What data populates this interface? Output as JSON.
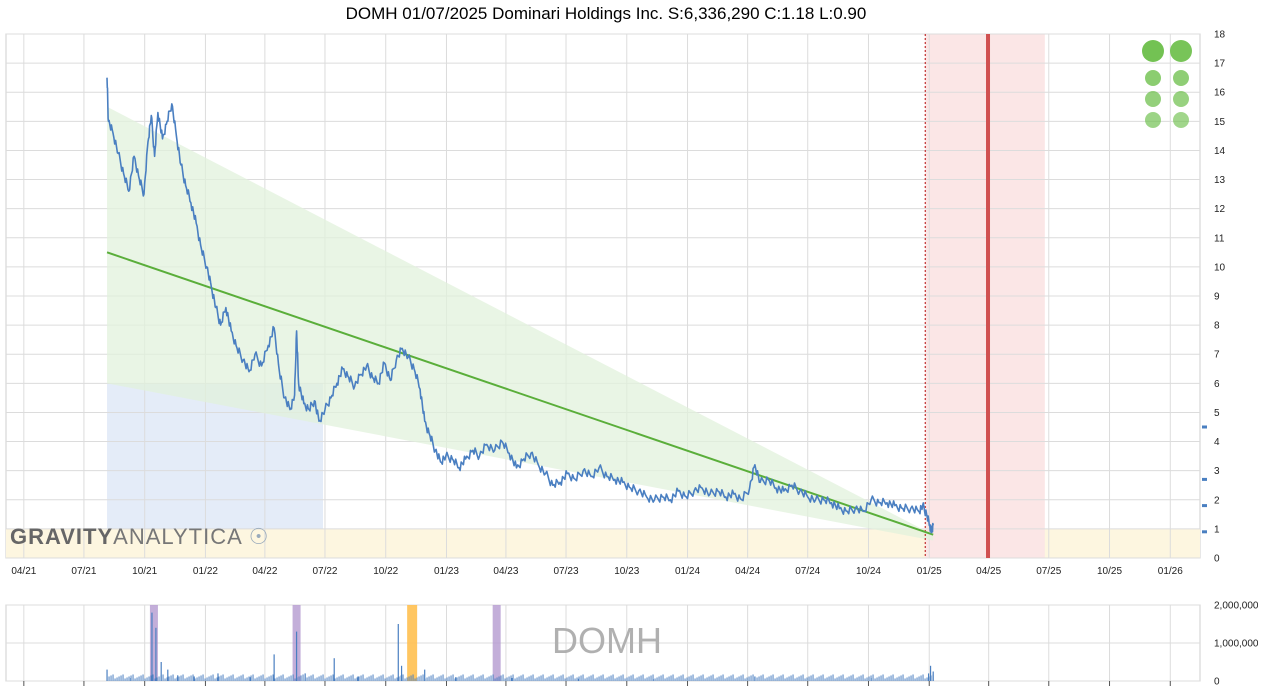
{
  "title": "DOMH 01/07/2025 Dominari Holdings Inc. S:6,336,290 C:1.18 L:0.90",
  "watermark": {
    "bold": "GRAVITY",
    "light": "ANALYTICA"
  },
  "volume_symbol": "DOMH",
  "colors": {
    "price": "#4a7fc1",
    "trend": "#5aae3a",
    "channel": "#e2f2dc",
    "blue_zone": "#e4ecf8",
    "yellow_zone": "#fdf6e0",
    "red_zone": "#fbe6e6",
    "red_line": "#d05050",
    "volume": "#4a7fc1",
    "purple_band": "#b49ad0",
    "orange_band": "#ffc050",
    "dots": "#6cbf4a"
  },
  "chart_data": [
    {
      "type": "line",
      "title": "DOMH 01/07/2025 Dominari Holdings Inc. S:6,336,290 C:1.18 L:0.90",
      "x_tick_labels": [
        "04/21",
        "07/21",
        "10/21",
        "01/22",
        "04/22",
        "07/22",
        "10/22",
        "01/23",
        "04/23",
        "07/23",
        "10/23",
        "01/24",
        "04/24",
        "07/24",
        "10/24",
        "01/25",
        "04/25",
        "07/25",
        "10/25",
        "01/26"
      ],
      "y_ticks": [
        0,
        1,
        2,
        3,
        4,
        5,
        6,
        7,
        8,
        9,
        10,
        11,
        12,
        13,
        14,
        15,
        16,
        17,
        18
      ],
      "ylim": [
        0,
        18
      ],
      "xlim": [
        "2021-03-05",
        "2026-02-15"
      ],
      "grid": true,
      "series": [
        {
          "name": "",
          "points": [
            [
              "2021-08-05",
              16.5
            ],
            [
              "2021-08-07",
              15.0
            ],
            [
              "2021-08-14",
              14.6
            ],
            [
              "2021-08-22",
              13.9
            ],
            [
              "2021-08-30",
              13.2
            ],
            [
              "2021-09-07",
              12.6
            ],
            [
              "2021-09-15",
              13.8
            ],
            [
              "2021-09-23",
              13.0
            ],
            [
              "2021-09-30",
              12.5
            ],
            [
              "2021-10-06",
              14.3
            ],
            [
              "2021-10-11",
              15.2
            ],
            [
              "2021-10-16",
              13.8
            ],
            [
              "2021-10-21",
              15.3
            ],
            [
              "2021-10-28",
              14.4
            ],
            [
              "2021-11-04",
              15.0
            ],
            [
              "2021-11-11",
              15.6
            ],
            [
              "2021-11-18",
              14.5
            ],
            [
              "2021-11-25",
              13.5
            ],
            [
              "2021-12-02",
              12.8
            ],
            [
              "2021-12-10",
              12.2
            ],
            [
              "2021-12-18",
              11.5
            ],
            [
              "2021-12-26",
              10.6
            ],
            [
              "2022-01-03",
              10.0
            ],
            [
              "2022-01-10",
              9.3
            ],
            [
              "2022-01-17",
              8.6
            ],
            [
              "2022-01-24",
              8.0
            ],
            [
              "2022-02-01",
              8.6
            ],
            [
              "2022-02-09",
              7.8
            ],
            [
              "2022-02-18",
              7.2
            ],
            [
              "2022-02-27",
              6.8
            ],
            [
              "2022-03-08",
              6.4
            ],
            [
              "2022-03-17",
              7.0
            ],
            [
              "2022-03-27",
              6.6
            ],
            [
              "2022-04-06",
              7.3
            ],
            [
              "2022-04-15",
              7.9
            ],
            [
              "2022-04-23",
              6.4
            ],
            [
              "2022-05-01",
              5.5
            ],
            [
              "2022-05-09",
              5.1
            ],
            [
              "2022-05-16",
              5.6
            ],
            [
              "2022-05-19",
              7.8
            ],
            [
              "2022-05-22",
              6.0
            ],
            [
              "2022-05-30",
              5.3
            ],
            [
              "2022-06-07",
              5.1
            ],
            [
              "2022-06-15",
              5.4
            ],
            [
              "2022-06-22",
              4.7
            ],
            [
              "2022-07-01",
              5.1
            ],
            [
              "2022-07-10",
              5.5
            ],
            [
              "2022-07-19",
              6.0
            ],
            [
              "2022-07-28",
              6.5
            ],
            [
              "2022-08-06",
              6.2
            ],
            [
              "2022-08-15",
              5.9
            ],
            [
              "2022-08-24",
              6.3
            ],
            [
              "2022-09-02",
              6.6
            ],
            [
              "2022-09-11",
              6.2
            ],
            [
              "2022-09-20",
              6.0
            ],
            [
              "2022-09-29",
              6.7
            ],
            [
              "2022-10-08",
              6.1
            ],
            [
              "2022-10-17",
              6.8
            ],
            [
              "2022-10-26",
              7.2
            ],
            [
              "2022-11-04",
              6.9
            ],
            [
              "2022-11-13",
              6.5
            ],
            [
              "2022-11-22",
              5.8
            ],
            [
              "2022-11-29",
              4.7
            ],
            [
              "2022-12-07",
              4.2
            ],
            [
              "2022-12-15",
              3.7
            ],
            [
              "2022-12-23",
              3.3
            ],
            [
              "2022-12-31",
              3.5
            ],
            [
              "2023-01-10",
              3.4
            ],
            [
              "2023-01-20",
              3.1
            ],
            [
              "2023-01-30",
              3.4
            ],
            [
              "2023-02-10",
              3.7
            ],
            [
              "2023-02-20",
              3.5
            ],
            [
              "2023-03-03",
              3.9
            ],
            [
              "2023-03-15",
              3.7
            ],
            [
              "2023-03-26",
              4.0
            ],
            [
              "2023-04-06",
              3.6
            ],
            [
              "2023-04-17",
              3.1
            ],
            [
              "2023-04-28",
              3.4
            ],
            [
              "2023-05-09",
              3.6
            ],
            [
              "2023-05-20",
              3.2
            ],
            [
              "2023-05-31",
              2.9
            ],
            [
              "2023-06-11",
              2.5
            ],
            [
              "2023-06-22",
              2.6
            ],
            [
              "2023-07-03",
              2.9
            ],
            [
              "2023-07-15",
              2.7
            ],
            [
              "2023-07-27",
              3.0
            ],
            [
              "2023-08-08",
              2.8
            ],
            [
              "2023-08-20",
              3.1
            ],
            [
              "2023-09-01",
              2.8
            ],
            [
              "2023-09-13",
              2.7
            ],
            [
              "2023-09-25",
              2.6
            ],
            [
              "2023-10-07",
              2.4
            ],
            [
              "2023-10-19",
              2.3
            ],
            [
              "2023-10-31",
              2.1
            ],
            [
              "2023-11-12",
              2.0
            ],
            [
              "2023-11-24",
              2.1
            ],
            [
              "2023-12-06",
              2.0
            ],
            [
              "2023-12-18",
              2.3
            ],
            [
              "2023-12-30",
              2.1
            ],
            [
              "2024-01-11",
              2.3
            ],
            [
              "2024-01-23",
              2.4
            ],
            [
              "2024-02-04",
              2.2
            ],
            [
              "2024-02-16",
              2.3
            ],
            [
              "2024-02-28",
              2.1
            ],
            [
              "2024-03-11",
              2.2
            ],
            [
              "2024-03-23",
              2.0
            ],
            [
              "2024-04-04",
              2.4
            ],
            [
              "2024-04-12",
              3.2
            ],
            [
              "2024-04-20",
              2.6
            ],
            [
              "2024-05-02",
              2.7
            ],
            [
              "2024-05-14",
              2.4
            ],
            [
              "2024-05-26",
              2.3
            ],
            [
              "2024-06-07",
              2.5
            ],
            [
              "2024-06-19",
              2.3
            ],
            [
              "2024-07-01",
              2.1
            ],
            [
              "2024-07-13",
              2.0
            ],
            [
              "2024-07-25",
              2.0
            ],
            [
              "2024-08-06",
              1.9
            ],
            [
              "2024-08-18",
              1.7
            ],
            [
              "2024-08-30",
              1.6
            ],
            [
              "2024-09-11",
              1.7
            ],
            [
              "2024-09-23",
              1.6
            ],
            [
              "2024-10-05",
              2.0
            ],
            [
              "2024-10-17",
              1.9
            ],
            [
              "2024-10-29",
              1.9
            ],
            [
              "2024-11-10",
              1.8
            ],
            [
              "2024-11-22",
              1.7
            ],
            [
              "2024-12-04",
              1.7
            ],
            [
              "2024-12-16",
              1.6
            ],
            [
              "2024-12-22",
              1.8
            ],
            [
              "2024-12-28",
              1.5
            ],
            [
              "2025-01-02",
              1.1
            ],
            [
              "2025-01-05",
              0.9
            ],
            [
              "2025-01-07",
              1.18
            ]
          ]
        }
      ],
      "trend_line": [
        [
          "2021-08-05",
          10.5
        ],
        [
          "2025-01-07",
          0.8
        ]
      ],
      "channel": [
        [
          "2021-08-05",
          15.5
        ],
        [
          "2021-08-05",
          6.0
        ],
        [
          "2025-01-07",
          0.6
        ],
        [
          "2025-01-07",
          0.8
        ]
      ],
      "blue_zone": {
        "x": [
          "2021-08-05",
          "2022-06-28"
        ],
        "y": [
          0,
          6.0
        ]
      },
      "yellow_zone": {
        "x": [
          "2021-03-05",
          "2026-02-15"
        ],
        "y": [
          0,
          1.0
        ]
      },
      "red_zone": {
        "x": [
          "2024-12-26",
          "2025-06-25"
        ],
        "y": [
          0,
          18
        ]
      },
      "red_dotted_line": "2024-12-26",
      "red_line": "2025-03-31",
      "right_axis_markers": [
        4.5,
        2.7,
        1.8,
        0.9
      ],
      "signal_dots": 10
    },
    {
      "type": "bar",
      "ylim": [
        0,
        2000000
      ],
      "y_ticks": [
        0,
        1000000,
        2000000
      ],
      "y_tick_labels": [
        "0",
        "1,000,000",
        "2,000,000"
      ],
      "spikes": [
        [
          "2021-08-05",
          300000
        ],
        [
          "2021-09-10",
          80000
        ],
        [
          "2021-10-12",
          1800000
        ],
        [
          "2021-10-18",
          1400000
        ],
        [
          "2021-10-26",
          500000
        ],
        [
          "2021-11-05",
          300000
        ],
        [
          "2021-11-20",
          150000
        ],
        [
          "2021-12-15",
          120000
        ],
        [
          "2022-01-20",
          200000
        ],
        [
          "2022-03-10",
          100000
        ],
        [
          "2022-04-15",
          700000
        ],
        [
          "2022-05-19",
          1300000
        ],
        [
          "2022-06-01",
          200000
        ],
        [
          "2022-07-15",
          600000
        ],
        [
          "2022-08-20",
          120000
        ],
        [
          "2022-10-20",
          1500000
        ],
        [
          "2022-10-25",
          400000
        ],
        [
          "2022-11-29",
          300000
        ],
        [
          "2023-01-15",
          100000
        ],
        [
          "2023-04-10",
          80000
        ],
        [
          "2023-07-20",
          60000
        ],
        [
          "2023-11-10",
          50000
        ],
        [
          "2024-04-12",
          120000
        ],
        [
          "2024-10-05",
          80000
        ],
        [
          "2024-12-31",
          200000
        ],
        [
          "2025-01-03",
          400000
        ],
        [
          "2025-01-07",
          250000
        ]
      ],
      "purple_bands": [
        "2021-10-15",
        "2022-05-19",
        "2023-03-18"
      ],
      "orange_bands": [
        "2022-11-10"
      ]
    }
  ]
}
